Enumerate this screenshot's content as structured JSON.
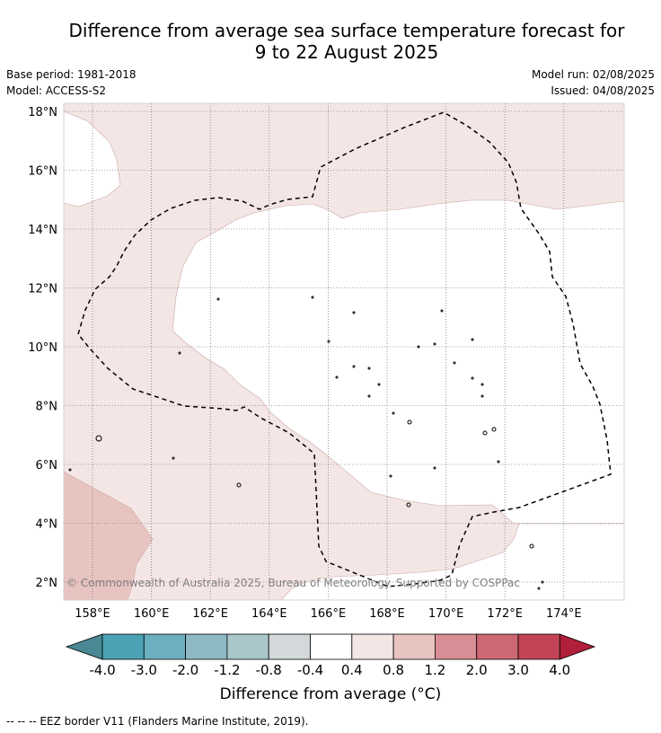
{
  "header": {
    "title_line1": "Difference from average sea surface temperature forecast for",
    "title_line2": "9 to 22 August 2025",
    "base_period": "Base period: 1981-2018",
    "model": "Model: ACCESS-S2",
    "model_run": "Model run: 02/08/2025",
    "issued": "Issued: 04/08/2025"
  },
  "map": {
    "lat_labels": [
      "18°N",
      "16°N",
      "14°N",
      "12°N",
      "10°N",
      "8°N",
      "6°N",
      "4°N",
      "2°N"
    ],
    "lon_labels": [
      "158°E",
      "160°E",
      "162°E",
      "164°E",
      "166°E",
      "168°E",
      "170°E",
      "172°E",
      "174°E"
    ],
    "copyright": "© Commonwealth of Australia 2025, Bureau of Meteorology. Supported by COSPPac",
    "legend_line": "EEZ border",
    "colors": {
      "anomaly_0_4_to_0_8": "#f4e6e5",
      "anomaly_0_8_to_1_2": "#e8c4c1",
      "neutral": "#ffffff",
      "eez_border": "#000000",
      "gridline": "#555555"
    }
  },
  "colorbar": {
    "tick_labels": [
      "-4.0",
      "-3.0",
      "-2.0",
      "-1.2",
      "-0.8",
      "-0.4",
      "0.4",
      "0.8",
      "1.2",
      "2.0",
      "3.0",
      "4.0"
    ],
    "colors": [
      "#4a8994",
      "#4ba2b4",
      "#6cb0c0",
      "#8db9c4",
      "#a9c7cb",
      "#d3d8da",
      "#ffffff",
      "#f4e6e5",
      "#e8c4c1",
      "#d98e95",
      "#cc6874",
      "#c24456",
      "#b11f3a"
    ],
    "label": "Difference from average (°C)"
  },
  "footnote": "--  --  -- EEZ border V11 (Flanders Marine Institute, 2019)."
}
